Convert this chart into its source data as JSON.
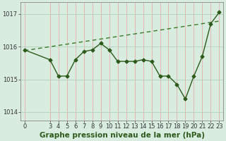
{
  "x": [
    0,
    3,
    4,
    5,
    6,
    7,
    8,
    9,
    10,
    11,
    12,
    13,
    14,
    15,
    16,
    17,
    18,
    19,
    20,
    21,
    22,
    23
  ],
  "y": [
    1015.9,
    1015.6,
    1015.1,
    1015.1,
    1015.6,
    1015.85,
    1015.9,
    1016.1,
    1015.9,
    1015.55,
    1015.55,
    1015.55,
    1015.6,
    1015.55,
    1015.1,
    1015.1,
    1014.85,
    1014.4,
    1015.1,
    1015.7,
    1016.7,
    1017.05
  ],
  "trend_x": [
    0,
    23
  ],
  "trend_y": [
    1015.88,
    1016.78
  ],
  "line_color": "#2d5a1b",
  "trend_color": "#3a7a28",
  "bg_color": "#d8ede0",
  "grid_color_v": "#e8a0a0",
  "grid_color_h": "#b0d0b8",
  "xlabel": "Graphe pression niveau de la mer (hPa)",
  "yticks": [
    1014,
    1015,
    1016,
    1017
  ],
  "xticks": [
    0,
    3,
    4,
    5,
    6,
    7,
    8,
    9,
    10,
    11,
    12,
    13,
    14,
    15,
    16,
    17,
    18,
    19,
    20,
    21,
    22,
    23
  ],
  "ylim": [
    1013.75,
    1017.35
  ],
  "xlim": [
    -0.5,
    23.5
  ],
  "marker": "D",
  "marker_size": 2.5,
  "line_width": 1.0,
  "xlabel_fontsize": 7.5,
  "tick_fontsize": 6.0,
  "xlabel_bold": true
}
